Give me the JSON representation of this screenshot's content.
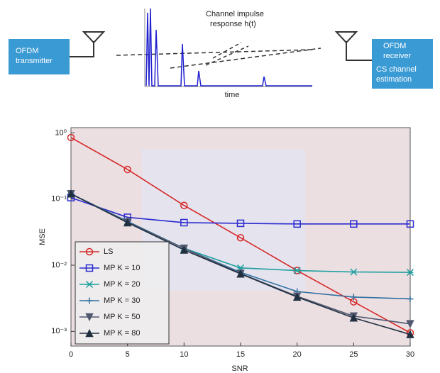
{
  "diagram": {
    "transmitter": [
      "OFDM",
      "transmitter"
    ],
    "channel": [
      "Channel impulse",
      "response h(t)"
    ],
    "time_label": "time",
    "receiver": [
      "OFDM",
      "receiver",
      "CS channel",
      "estimation"
    ]
  },
  "chart_data": {
    "type": "line",
    "x_label": "SNR",
    "y_label": "MSE",
    "log_y": true,
    "x": [
      0,
      5,
      10,
      15,
      20,
      25,
      30
    ],
    "xlim": [
      0,
      30
    ],
    "xticks": [
      0,
      5,
      10,
      15,
      20,
      25,
      30
    ],
    "ylim": [
      0.0006,
      1.2
    ],
    "yticks": [
      {
        "value": 1,
        "label": "10⁰"
      },
      {
        "value": 0.1,
        "label": "10⁻¹"
      },
      {
        "value": 0.01,
        "label": "10⁻²"
      },
      {
        "value": 0.001,
        "label": "10⁻³"
      }
    ],
    "legend": "lower left",
    "series": [
      {
        "name": "LS",
        "color": "#d62828",
        "marker": "circle",
        "values": [
          0.85,
          0.28,
          0.08,
          0.026,
          0.0083,
          0.0028,
          0.00095
        ]
      },
      {
        "name": "MP K = 10",
        "color": "#2a2ad0",
        "marker": "square",
        "values": [
          0.105,
          0.053,
          0.044,
          0.043,
          0.042,
          0.042,
          0.042
        ]
      },
      {
        "name": "MP K = 20",
        "color": "#20a0a0",
        "marker": "x",
        "values": [
          0.12,
          0.046,
          0.018,
          0.0091,
          0.0083,
          0.0079,
          0.0078
        ]
      },
      {
        "name": "MP K = 30",
        "color": "#3070a0",
        "marker": "plus",
        "values": [
          0.12,
          0.046,
          0.018,
          0.0078,
          0.004,
          0.0033,
          0.0031
        ]
      },
      {
        "name": "MP K = 50",
        "color": "#505870",
        "marker": "down",
        "values": [
          0.12,
          0.045,
          0.018,
          0.0075,
          0.0034,
          0.0017,
          0.0013
        ]
      },
      {
        "name": "MP K = 80",
        "color": "#203040",
        "marker": "up",
        "values": [
          0.12,
          0.044,
          0.017,
          0.0074,
          0.0033,
          0.0016,
          0.0009
        ]
      }
    ]
  }
}
